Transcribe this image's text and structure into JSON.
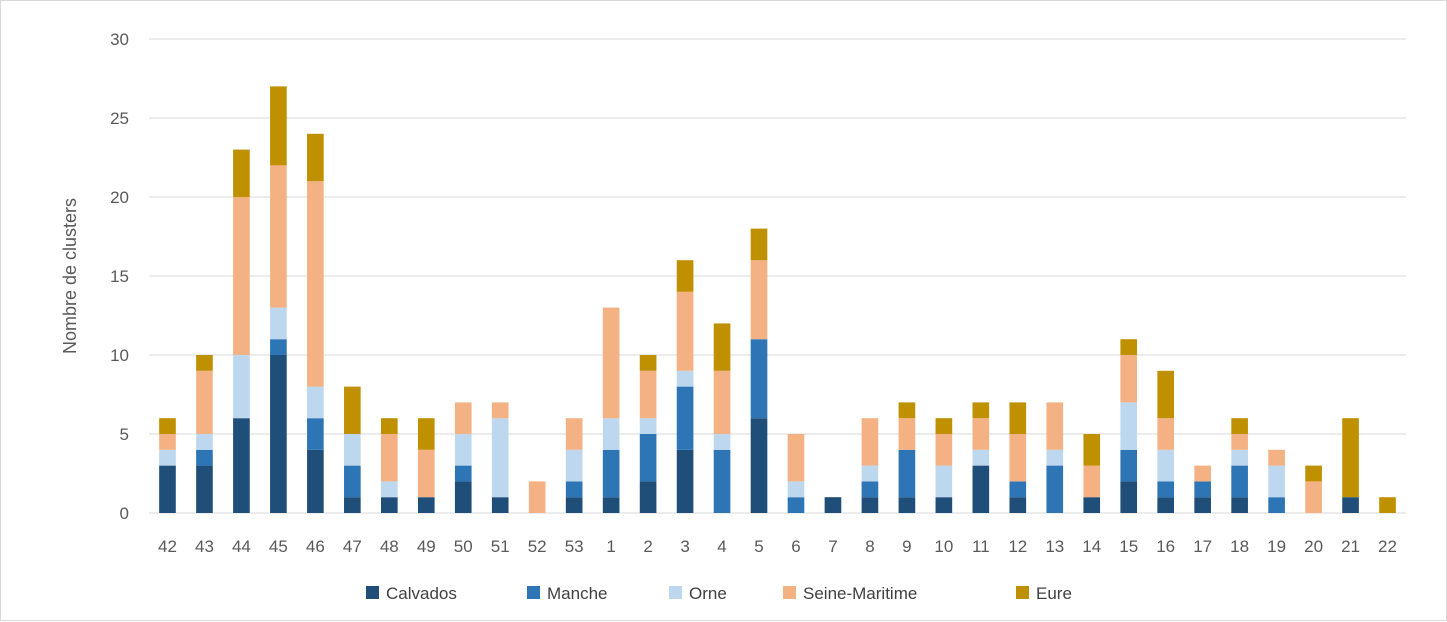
{
  "chart_data": {
    "type": "bar",
    "stacked": true,
    "title": "",
    "xlabel": "",
    "ylabel": "Nombre de clusters",
    "ylim": [
      0,
      30
    ],
    "yticks": [
      0,
      5,
      10,
      15,
      20,
      25,
      30
    ],
    "grid": true,
    "legend_position": "bottom",
    "categories": [
      "42",
      "43",
      "44",
      "45",
      "46",
      "47",
      "48",
      "49",
      "50",
      "51",
      "52",
      "53",
      "1",
      "2",
      "3",
      "4",
      "5",
      "6",
      "7",
      "8",
      "9",
      "10",
      "11",
      "12",
      "13",
      "14",
      "15",
      "16",
      "17",
      "18",
      "19",
      "20",
      "21",
      "22"
    ],
    "series": [
      {
        "name": "Calvados",
        "color": "#1f4e79",
        "values": [
          3,
          3,
          6,
          10,
          4,
          1,
          1,
          1,
          2,
          1,
          0,
          1,
          1,
          2,
          4,
          0,
          6,
          0,
          1,
          1,
          1,
          1,
          3,
          1,
          0,
          1,
          2,
          1,
          1,
          1,
          0,
          0,
          1,
          0
        ]
      },
      {
        "name": "Manche",
        "color": "#2e75b6",
        "values": [
          0,
          1,
          0,
          1,
          2,
          2,
          0,
          0,
          1,
          0,
          0,
          1,
          3,
          3,
          4,
          4,
          5,
          1,
          0,
          1,
          3,
          0,
          0,
          1,
          3,
          0,
          2,
          1,
          1,
          2,
          1,
          0,
          0,
          0
        ]
      },
      {
        "name": "Orne",
        "color": "#bdd7ee",
        "values": [
          1,
          1,
          4,
          2,
          2,
          2,
          1,
          0,
          2,
          5,
          0,
          2,
          2,
          1,
          1,
          1,
          0,
          1,
          0,
          1,
          0,
          2,
          1,
          0,
          1,
          0,
          3,
          2,
          0,
          1,
          2,
          0,
          0,
          0
        ]
      },
      {
        "name": "Seine-Maritime",
        "color": "#f4b183",
        "values": [
          1,
          4,
          10,
          9,
          13,
          0,
          3,
          3,
          2,
          1,
          2,
          2,
          7,
          3,
          5,
          4,
          5,
          3,
          0,
          3,
          2,
          2,
          2,
          3,
          3,
          2,
          3,
          2,
          1,
          1,
          1,
          2,
          0,
          0
        ]
      },
      {
        "name": "Eure",
        "color": "#bf9000",
        "values": [
          1,
          1,
          3,
          5,
          3,
          3,
          1,
          2,
          0,
          0,
          0,
          0,
          0,
          1,
          2,
          3,
          2,
          0,
          0,
          0,
          1,
          1,
          1,
          2,
          0,
          2,
          1,
          3,
          0,
          1,
          0,
          1,
          5,
          1
        ]
      }
    ]
  }
}
